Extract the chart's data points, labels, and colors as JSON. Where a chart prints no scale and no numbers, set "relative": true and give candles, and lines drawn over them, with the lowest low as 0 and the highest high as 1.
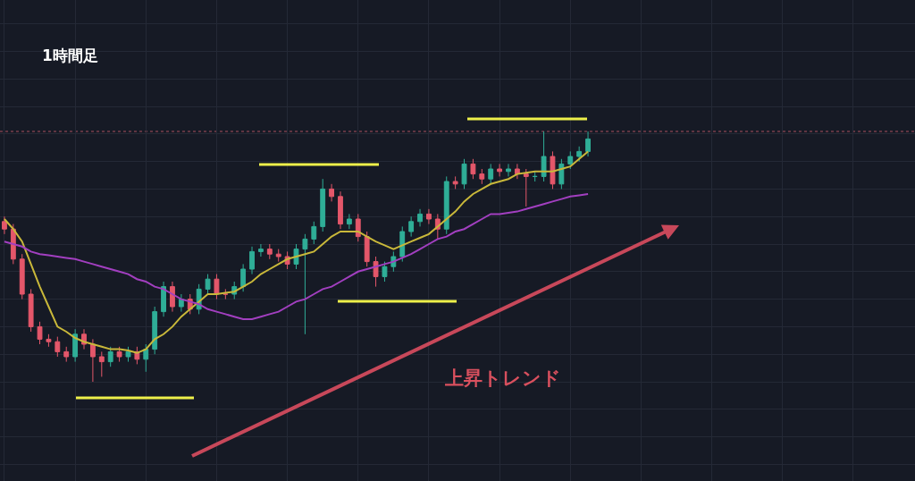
{
  "chart_data": {
    "type": "candlestick",
    "title": "1時間足",
    "relative": true,
    "grid": true,
    "categories": [
      null,
      null,
      null,
      null,
      null,
      null,
      null,
      null,
      null,
      null,
      null,
      null,
      null,
      null,
      null,
      null,
      null,
      null,
      null,
      null,
      null,
      null,
      null,
      null,
      null,
      null,
      null,
      null,
      null,
      null,
      null,
      null,
      null,
      null,
      null,
      null,
      null,
      null,
      null,
      null,
      null,
      null,
      null,
      null,
      null,
      null,
      null,
      null,
      null,
      null,
      null,
      null,
      null,
      null,
      null,
      null,
      null,
      null,
      null,
      null,
      null,
      null,
      null,
      null,
      null,
      null,
      null
    ],
    "colors": [
      "#e4576a",
      "#e4576a",
      "#e4576a",
      "#e4576a",
      "#e4576a",
      "#e4576a",
      "#e4576a",
      "#e4576a",
      "#2fae97",
      "#e4576a",
      "#e4576a",
      "#e4576a",
      "#2fae97",
      "#e4576a",
      "#2fae97",
      "#e4576a",
      "#2fae97",
      "#2fae97",
      "#2fae97",
      "#e4576a",
      "#2fae97",
      "#e4576a",
      "#2fae97",
      "#2fae97",
      "#e4576a",
      "#e4576a",
      "#2fae97",
      "#2fae97",
      "#2fae97",
      "#2fae97",
      "#e4576a",
      "#e4576a",
      "#e4576a",
      "#2fae97",
      "#2fae97",
      "#2fae97",
      "#2fae97",
      "#e4576a",
      "#e4576a",
      "#2fae97",
      "#e4576a",
      "#e4576a",
      "#e4576a",
      "#2fae97",
      "#2fae97",
      "#2fae97",
      "#2fae97",
      "#2fae97",
      "#e4576a",
      "#e4576a",
      "#2fae97",
      "#e4576a",
      "#2fae97",
      "#e4576a",
      "#e4576a",
      "#2fae97",
      "#e4576a",
      "#2fae97",
      "#e4576a",
      "#e4576a",
      "#2fae97",
      "#2fae97",
      "#e4576a",
      "#2fae97",
      "#2fae97",
      "#2fae97",
      "#2fae97"
    ],
    "ohlc": [
      [
        0.64,
        0.66,
        0.59,
        0.61
      ],
      [
        0.61,
        0.63,
        0.47,
        0.49
      ],
      [
        0.49,
        0.51,
        0.33,
        0.35
      ],
      [
        0.35,
        0.37,
        0.2,
        0.22
      ],
      [
        0.22,
        0.24,
        0.15,
        0.17
      ],
      [
        0.17,
        0.19,
        0.14,
        0.16
      ],
      [
        0.16,
        0.18,
        0.1,
        0.12
      ],
      [
        0.12,
        0.14,
        0.08,
        0.1
      ],
      [
        0.1,
        0.21,
        0.08,
        0.19
      ],
      [
        0.19,
        0.21,
        0.13,
        0.15
      ],
      [
        0.15,
        0.17,
        0,
        0.1
      ],
      [
        0.1,
        0.12,
        0.02,
        0.08
      ],
      [
        0.08,
        0.14,
        0.06,
        0.12
      ],
      [
        0.12,
        0.14,
        0.08,
        0.1
      ],
      [
        0.1,
        0.14,
        0.08,
        0.12
      ],
      [
        0.12,
        0.14,
        0.07,
        0.09
      ],
      [
        0.09,
        0.15,
        0.04,
        0.13
      ],
      [
        0.13,
        0.3,
        0.11,
        0.28
      ],
      [
        0.28,
        0.4,
        0.26,
        0.38
      ],
      [
        0.38,
        0.4,
        0.28,
        0.3
      ],
      [
        0.3,
        0.35,
        0.28,
        0.33
      ],
      [
        0.33,
        0.35,
        0.27,
        0.29
      ],
      [
        0.29,
        0.39,
        0.27,
        0.37
      ],
      [
        0.37,
        0.43,
        0.35,
        0.41
      ],
      [
        0.41,
        0.43,
        0.33,
        0.35
      ],
      [
        0.35,
        0.37,
        0.33,
        0.35
      ],
      [
        0.35,
        0.4,
        0.33,
        0.38
      ],
      [
        0.38,
        0.47,
        0.36,
        0.45
      ],
      [
        0.45,
        0.54,
        0.43,
        0.52
      ],
      [
        0.52,
        0.55,
        0.5,
        0.53
      ],
      [
        0.53,
        0.55,
        0.49,
        0.51
      ],
      [
        0.51,
        0.53,
        0.48,
        0.5
      ],
      [
        0.5,
        0.52,
        0.45,
        0.47
      ],
      [
        0.47,
        0.55,
        0.45,
        0.53
      ],
      [
        0.53,
        0.59,
        0.19,
        0.57
      ],
      [
        0.57,
        0.64,
        0.55,
        0.62
      ],
      [
        0.62,
        0.81,
        0.6,
        0.77
      ],
      [
        0.77,
        0.79,
        0.72,
        0.74
      ],
      [
        0.74,
        0.76,
        0.61,
        0.63
      ],
      [
        0.63,
        0.67,
        0.61,
        0.65
      ],
      [
        0.65,
        0.67,
        0.56,
        0.58
      ],
      [
        0.58,
        0.6,
        0.46,
        0.48
      ],
      [
        0.48,
        0.5,
        0.38,
        0.42
      ],
      [
        0.42,
        0.48,
        0.4,
        0.46
      ],
      [
        0.46,
        0.52,
        0.44,
        0.5
      ],
      [
        0.5,
        0.62,
        0.48,
        0.6
      ],
      [
        0.6,
        0.66,
        0.58,
        0.64
      ],
      [
        0.64,
        0.69,
        0.62,
        0.67
      ],
      [
        0.67,
        0.69,
        0.63,
        0.65
      ],
      [
        0.65,
        0.67,
        0.57,
        0.61
      ],
      [
        0.61,
        0.82,
        0.59,
        0.8
      ],
      [
        0.8,
        0.82,
        0.77,
        0.79
      ],
      [
        0.79,
        0.89,
        0.77,
        0.87
      ],
      [
        0.87,
        0.89,
        0.81,
        0.83
      ],
      [
        0.83,
        0.85,
        0.79,
        0.81
      ],
      [
        0.81,
        0.87,
        0.79,
        0.85
      ],
      [
        0.85,
        0.87,
        0.82,
        0.84
      ],
      [
        0.84,
        0.87,
        0.82,
        0.85
      ],
      [
        0.85,
        0.87,
        0.81,
        0.83
      ],
      [
        0.83,
        0.85,
        0.7,
        0.82
      ],
      [
        0.82,
        0.84,
        0.8,
        0.82
      ],
      [
        0.82,
        1,
        0.8,
        0.9
      ],
      [
        0.9,
        0.92,
        0.77,
        0.79
      ],
      [
        0.79,
        0.89,
        0.77,
        0.87
      ],
      [
        0.87,
        0.92,
        0.85,
        0.9
      ],
      [
        0.9,
        0.94,
        0.88,
        0.92
      ],
      [
        0.92,
        1,
        0.9,
        0.97
      ]
    ],
    "series": [
      {
        "type": "line",
        "color": "#c9b83a",
        "values": [
          0.65,
          0.61,
          0.56,
          0.47,
          0.38,
          0.3,
          0.22,
          0.2,
          0.175,
          0.16,
          0.15,
          0.14,
          0.13,
          0.13,
          0.125,
          0.115,
          0.13,
          0.17,
          0.19,
          0.22,
          0.26,
          0.29,
          0.32,
          0.35,
          0.35,
          0.355,
          0.36,
          0.38,
          0.4,
          0.43,
          0.45,
          0.47,
          0.49,
          0.5,
          0.51,
          0.52,
          0.55,
          0.58,
          0.6,
          0.6,
          0.6,
          0.58,
          0.56,
          0.545,
          0.53,
          0.545,
          0.56,
          0.575,
          0.59,
          0.62,
          0.65,
          0.68,
          0.72,
          0.75,
          0.77,
          0.79,
          0.8,
          0.81,
          0.83,
          0.835,
          0.84,
          0.84,
          0.84,
          0.85,
          0.86,
          0.89,
          0.92
        ]
      },
      {
        "type": "line",
        "color": "#a23fc0",
        "values": [
          0.56,
          0.55,
          0.54,
          0.52,
          0.51,
          0.505,
          0.5,
          0.495,
          0.49,
          0.48,
          0.47,
          0.46,
          0.45,
          0.44,
          0.43,
          0.41,
          0.4,
          0.38,
          0.37,
          0.35,
          0.33,
          0.32,
          0.31,
          0.29,
          0.28,
          0.27,
          0.26,
          0.25,
          0.25,
          0.26,
          0.27,
          0.28,
          0.3,
          0.32,
          0.33,
          0.35,
          0.37,
          0.38,
          0.4,
          0.42,
          0.44,
          0.45,
          0.46,
          0.47,
          0.48,
          0.495,
          0.51,
          0.53,
          0.55,
          0.57,
          0.58,
          0.6,
          0.61,
          0.63,
          0.65,
          0.67,
          0.67,
          0.675,
          0.68,
          0.69,
          0.7,
          0.71,
          0.72,
          0.73,
          0.74,
          0.745,
          0.75
        ]
      }
    ],
    "ref_lines": [
      {
        "axis": "y",
        "value": 1,
        "color": "#a8505e",
        "line_style": "dotted"
      }
    ],
    "annotations": [
      "上昇トレンド"
    ]
  }
}
